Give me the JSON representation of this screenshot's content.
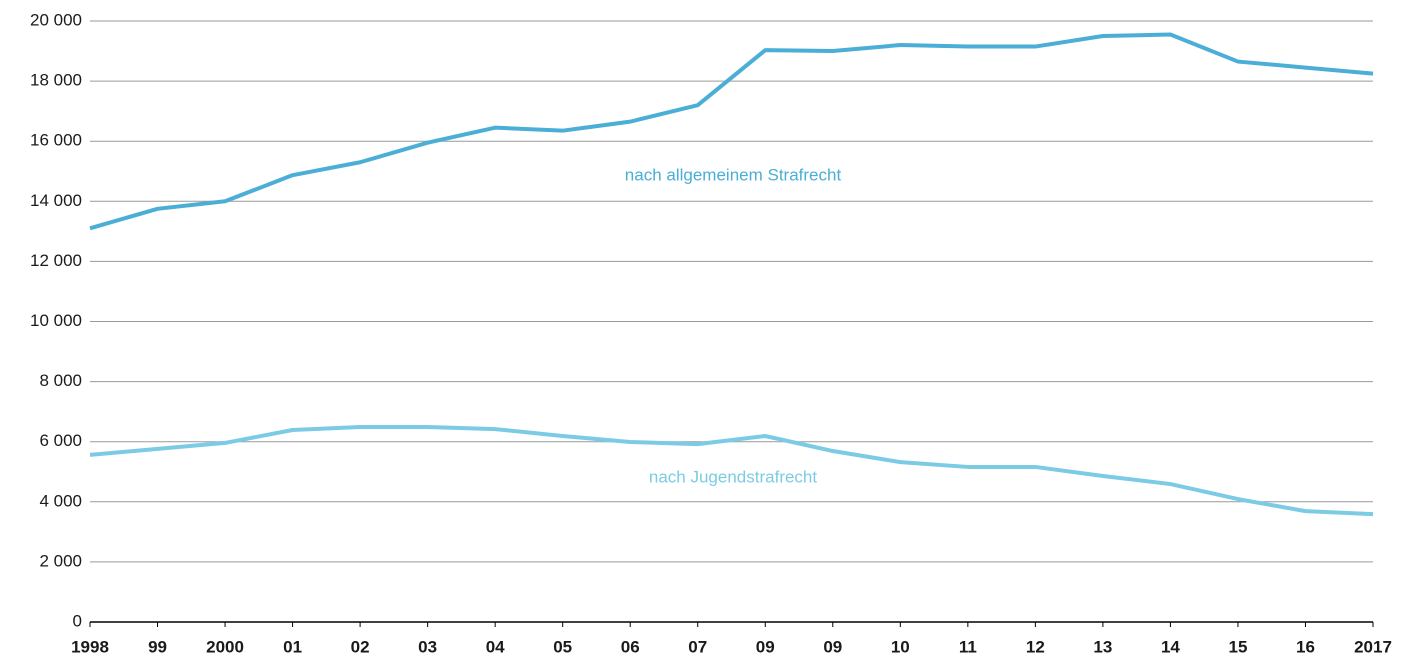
{
  "chart_data": {
    "type": "line",
    "categories": [
      "1998",
      "99",
      "2000",
      "01",
      "02",
      "03",
      "04",
      "05",
      "06",
      "07",
      "09",
      "09",
      "10",
      "11",
      "12",
      "13",
      "14",
      "15",
      "16",
      "2017"
    ],
    "series": [
      {
        "name": "nach allgemeinem Strafrecht",
        "color": "#4aaed6",
        "values": [
          13100,
          13750,
          14000,
          14870,
          15300,
          15950,
          16450,
          16350,
          16650,
          17200,
          19030,
          19000,
          19200,
          19150,
          19150,
          19500,
          19550,
          18650,
          18450,
          18250
        ]
      },
      {
        "name": "nach Jugendstrafrecht",
        "color": "#7ccbe5",
        "values": [
          5560,
          5760,
          5960,
          6390,
          6490,
          6490,
          6420,
          6190,
          5990,
          5920,
          6190,
          5690,
          5320,
          5160,
          5160,
          4860,
          4590,
          4090,
          3690,
          3590
        ]
      }
    ],
    "ylim": [
      0,
      20000
    ],
    "yticks": [
      0,
      {
        "value": 2000,
        "label": "2 000"
      },
      {
        "value": 4000,
        "label": "4 000"
      },
      {
        "value": 6000,
        "label": "6 000"
      },
      {
        "value": 8000,
        "label": "8 000"
      },
      {
        "value": 10000,
        "label": "10 000"
      },
      {
        "value": 12000,
        "label": "12 000"
      },
      {
        "value": 14000,
        "label": "14 000"
      },
      {
        "value": 16000,
        "label": "16 000"
      },
      {
        "value": 18000,
        "label": "18 000"
      },
      {
        "value": 20000,
        "label": "20 000"
      }
    ],
    "grid": true
  }
}
